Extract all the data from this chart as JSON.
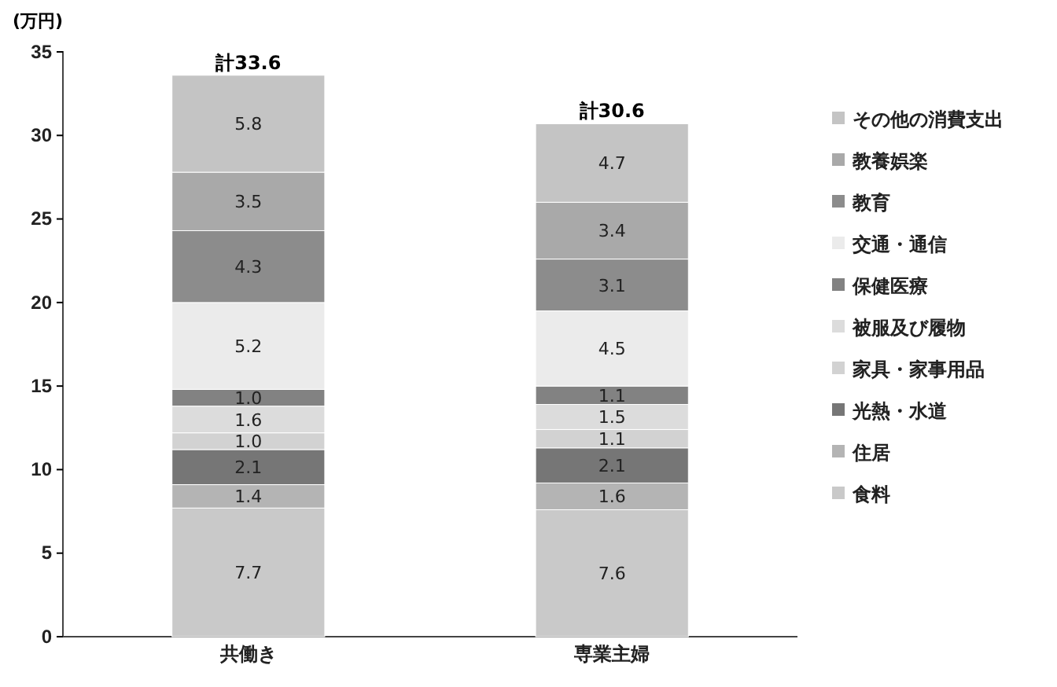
{
  "chart_data": {
    "type": "bar",
    "stacked": true,
    "ylabel": "(万円)",
    "categories": [
      "共働き",
      "専業主婦"
    ],
    "series": [
      {
        "name": "食料",
        "color": "#c9c9c9",
        "values": [
          7.7,
          7.6
        ],
        "value_labels": [
          "7.7",
          "7.6"
        ]
      },
      {
        "name": "住居",
        "color": "#b4b4b4",
        "values": [
          1.4,
          1.6
        ],
        "value_labels": [
          "1.4",
          "1.6"
        ]
      },
      {
        "name": "光熱・水道",
        "color": "#767676",
        "values": [
          2.1,
          2.1
        ],
        "value_labels": [
          "2.1",
          "2.1"
        ]
      },
      {
        "name": "家具・家事用品",
        "color": "#d2d2d2",
        "values": [
          1.0,
          1.1
        ],
        "value_labels": [
          "1.0",
          "1.1"
        ]
      },
      {
        "name": "被服及び履物",
        "color": "#dcdcdc",
        "values": [
          1.6,
          1.5
        ],
        "value_labels": [
          "1.6",
          "1.5"
        ]
      },
      {
        "name": "保健医療",
        "color": "#828282",
        "values": [
          1.0,
          1.1
        ],
        "value_labels": [
          "1.0",
          "1.1"
        ]
      },
      {
        "name": "交通・通信",
        "color": "#ebebeb",
        "values": [
          5.2,
          4.5
        ],
        "value_labels": [
          "5.2",
          "4.5"
        ]
      },
      {
        "name": "教育",
        "color": "#8c8c8c",
        "values": [
          4.3,
          3.1
        ],
        "value_labels": [
          "4.3",
          "3.1"
        ]
      },
      {
        "name": "教養娯楽",
        "color": "#a9a9a9",
        "values": [
          3.5,
          3.4
        ],
        "value_labels": [
          "3.5",
          "3.4"
        ]
      },
      {
        "name": "その他の消費支出",
        "color": "#c4c4c4",
        "values": [
          5.8,
          4.7
        ],
        "value_labels": [
          "5.8",
          "4.7"
        ]
      }
    ],
    "totals": [
      "計33.6",
      "計30.6"
    ],
    "ylim": [
      0,
      35
    ],
    "yticks": [
      0,
      5,
      10,
      15,
      20,
      25,
      30,
      35
    ],
    "grid": false,
    "legend": "right"
  }
}
